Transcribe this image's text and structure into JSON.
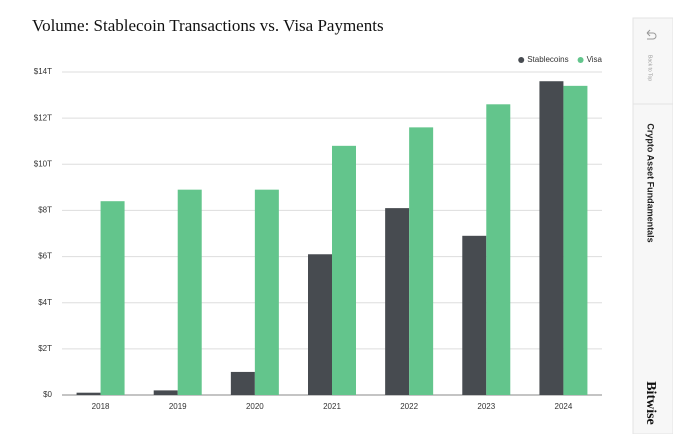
{
  "chart_data": {
    "type": "bar",
    "title": "Volume: Stablecoin Transactions vs. Visa Payments",
    "categories": [
      "2018",
      "2019",
      "2020",
      "2021",
      "2022",
      "2023",
      "2024"
    ],
    "series": [
      {
        "name": "Stablecoins",
        "color": "#474b50",
        "values": [
          0.1,
          0.2,
          1.0,
          6.1,
          8.1,
          6.9,
          13.6
        ]
      },
      {
        "name": "Visa",
        "color": "#63c58c",
        "values": [
          8.4,
          8.9,
          8.9,
          10.8,
          11.6,
          12.6,
          13.4
        ]
      }
    ],
    "ylim": [
      0,
      14
    ],
    "yticks": [
      {
        "value": 0,
        "label": "$0"
      },
      {
        "value": 2,
        "label": "$2T"
      },
      {
        "value": 4,
        "label": "$4T"
      },
      {
        "value": 6,
        "label": "$6T"
      },
      {
        "value": 8,
        "label": "$8T"
      },
      {
        "value": 10,
        "label": "$10T"
      },
      {
        "value": 12,
        "label": "$12T"
      },
      {
        "value": 14,
        "label": "$14T"
      }
    ],
    "grid": true,
    "legend": "top-right"
  },
  "sidebar": {
    "back_label": "Back to Top",
    "section": "Crypto Asset Fundamentals",
    "brand": "Bitwise"
  }
}
